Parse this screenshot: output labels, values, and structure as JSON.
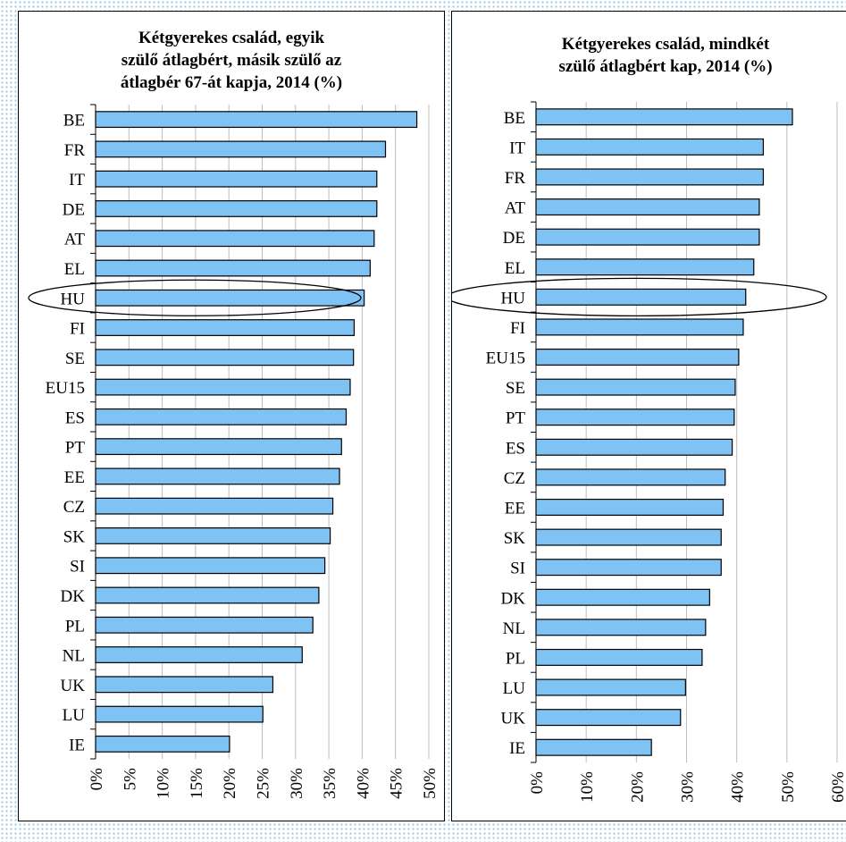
{
  "chart_data": [
    {
      "type": "bar",
      "orientation": "horizontal",
      "title_lines": [
        "Kétgyerekes család, egyik",
        "szülő átlagbért, másik szülő az",
        "átlagbér 67-át kapja, 2014 (%)"
      ],
      "categories": [
        "BE",
        "FR",
        "IT",
        "DE",
        "AT",
        "EL",
        "HU",
        "FI",
        "SE",
        "EU15",
        "ES",
        "PT",
        "EE",
        "CZ",
        "SK",
        "SI",
        "DK",
        "PL",
        "NL",
        "UK",
        "LU",
        "IE"
      ],
      "values": [
        48.2,
        43.5,
        42.2,
        42.2,
        41.8,
        41.2,
        40.3,
        38.8,
        38.7,
        38.2,
        37.6,
        36.9,
        36.6,
        35.6,
        35.2,
        34.4,
        33.5,
        32.6,
        31.0,
        26.6,
        25.1,
        20.1
      ],
      "xlim": [
        0,
        50
      ],
      "xticks": [
        "0%",
        "5%",
        "10%",
        "15%",
        "20%",
        "25%",
        "30%",
        "35%",
        "40%",
        "45%",
        "50%"
      ],
      "highlight": "HU",
      "bar_color": "#7fc3f4",
      "grid": true
    },
    {
      "type": "bar",
      "orientation": "horizontal",
      "title_lines": [
        "Kétgyerekes család, mindkét",
        "szülő átlagbért kap, 2014 (%)"
      ],
      "categories": [
        "BE",
        "IT",
        "FR",
        "AT",
        "DE",
        "EL",
        "HU",
        "FI",
        "EU15",
        "SE",
        "PT",
        "ES",
        "CZ",
        "EE",
        "SK",
        "SI",
        "DK",
        "NL",
        "PL",
        "LU",
        "UK",
        "IE"
      ],
      "values": [
        51.1,
        45.3,
        45.3,
        44.5,
        44.5,
        43.4,
        41.8,
        41.3,
        40.4,
        39.7,
        39.5,
        39.1,
        37.7,
        37.3,
        36.9,
        36.9,
        34.6,
        33.8,
        33.1,
        29.8,
        28.8,
        23.0
      ],
      "xlim": [
        0,
        60
      ],
      "xticks": [
        "0%",
        "10%",
        "20%",
        "30%",
        "40%",
        "50%",
        "60%"
      ],
      "highlight": "HU",
      "bar_color": "#7fc3f4",
      "grid": true
    }
  ]
}
